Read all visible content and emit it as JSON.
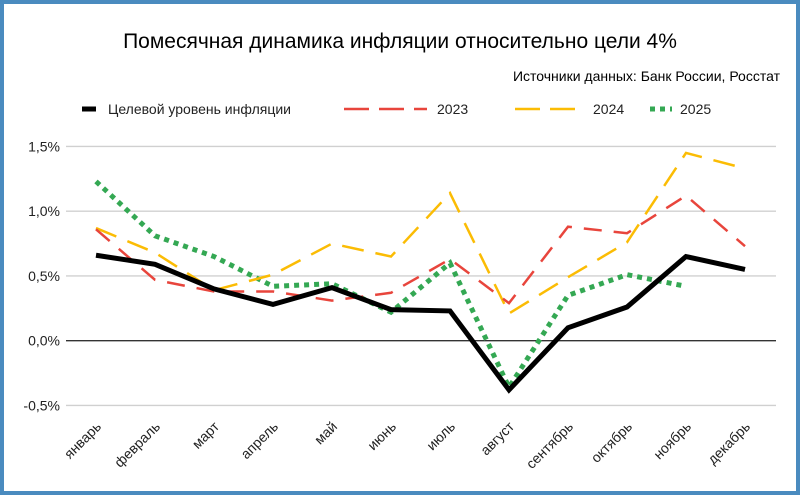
{
  "chart_data": {
    "type": "line",
    "title": "Помесячная динамика инфляции относительно цели 4%",
    "subtitle": "Источники данных: Банк России, Росстат",
    "categories": [
      "январь",
      "февраль",
      "март",
      "апрель",
      "май",
      "июнь",
      "июль",
      "август",
      "сентябрь",
      "октябрь",
      "ноябрь",
      "декабрь"
    ],
    "ylim": [
      -0.5,
      1.5
    ],
    "yticks": [
      1.5,
      1.0,
      0.5,
      0.0,
      -0.5
    ],
    "ytick_labels": [
      "1,5%",
      "1,0%",
      "0,5%",
      "0,0%",
      "-0,5%"
    ],
    "grid": true,
    "legend_position": "top",
    "series": [
      {
        "name": "Целевой уровень инфляции",
        "color": "#000000",
        "style": "solid",
        "values": [
          0.66,
          0.59,
          0.4,
          0.28,
          0.41,
          0.24,
          0.23,
          -0.38,
          0.1,
          0.26,
          0.65,
          0.55
        ]
      },
      {
        "name": "2023",
        "color": "#e8453c",
        "style": "dashed",
        "values": [
          0.86,
          0.47,
          0.38,
          0.38,
          0.31,
          0.37,
          0.63,
          0.29,
          0.88,
          0.83,
          1.12,
          0.73
        ]
      },
      {
        "name": "2024",
        "color": "#fbbc04",
        "style": "dashed-long",
        "values": [
          0.87,
          0.68,
          0.39,
          0.51,
          0.75,
          0.65,
          1.14,
          0.21,
          0.49,
          0.76,
          1.45,
          1.33
        ]
      },
      {
        "name": "2025",
        "color": "#34a853",
        "style": "dotted",
        "values": [
          1.23,
          0.81,
          0.65,
          0.42,
          0.44,
          0.22,
          0.6,
          -0.36,
          0.35,
          0.51,
          0.42,
          null
        ]
      }
    ]
  }
}
